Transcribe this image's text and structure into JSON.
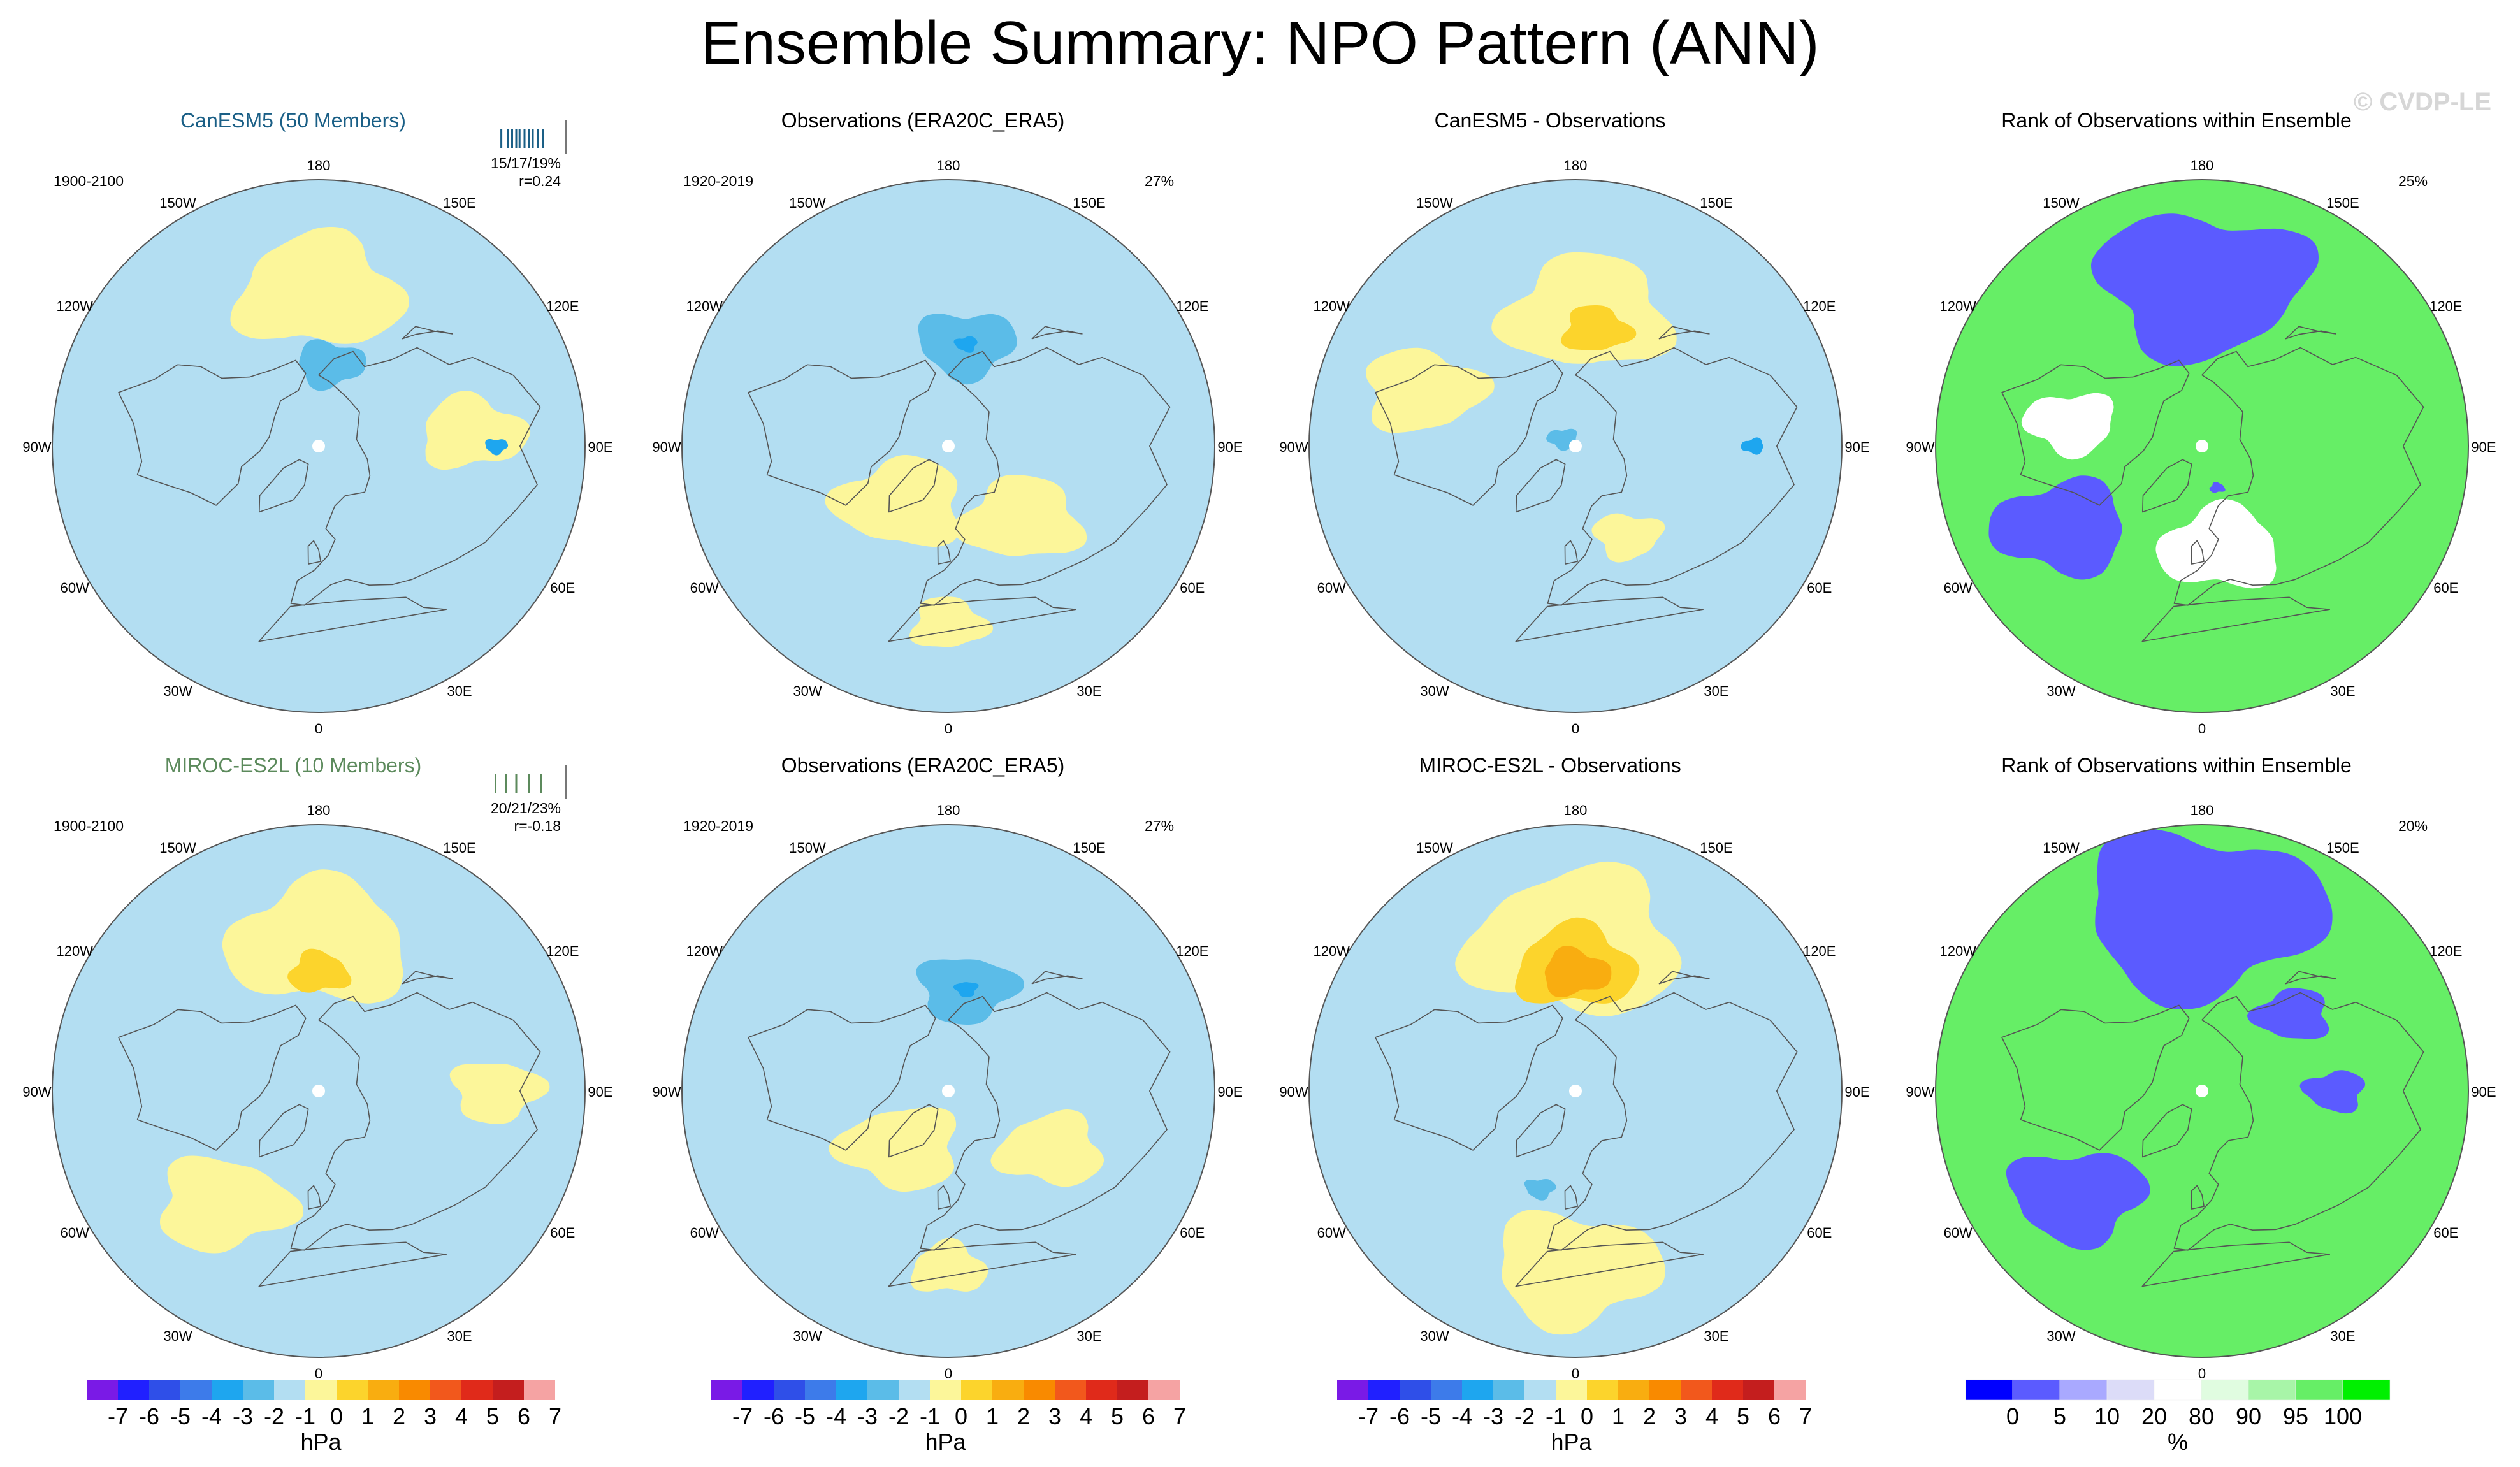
{
  "figure": {
    "title": "Ensemble Summary: NPO Pattern (ANN)",
    "watermark": "© CVDP-LE"
  },
  "colors": {
    "anomaly_levels": [
      "#7a1ae6",
      "#2020ff",
      "#2f4fe8",
      "#3d7bea",
      "#1ea6ef",
      "#5bbce8",
      "#b3def2",
      "#fcf69a",
      "#fcd42c",
      "#f9ad10",
      "#f98a00",
      "#f2581c",
      "#e02a1a",
      "#c41e1e",
      "#f5a3a3"
    ],
    "rank_levels": [
      "#0000ff",
      "#5b5bff",
      "#a9a9ff",
      "#dcdcf8",
      "#ffffff",
      "#e0fce0",
      "#a8f5a8",
      "#66ee66",
      "#00f000"
    ],
    "model_title_row1": "#1a5f86",
    "model_title_row2": "#5c8a5c",
    "land": "#dfe8ee"
  },
  "chart_data": [
    {
      "type": "heatmap",
      "panel": "model",
      "map_projection": "polar-stereographic-nh",
      "title": "CanESM5 (50 Members)",
      "period": "1900-2100",
      "stats": "15/17/19%",
      "pattern_corr": "r=0.24",
      "units": "hPa",
      "ensemble_ticks": [
        0.22,
        0.3,
        0.35,
        0.4,
        0.44,
        0.5,
        0.55,
        0.6,
        0.66,
        0.72
      ],
      "field": {
        "background_value": -0.5,
        "anomalies": [
          {
            "lon": 180,
            "lat": 38,
            "value": 0.5,
            "size_deg": 22
          },
          {
            "lon": 95,
            "lat": 38,
            "value": 0.5,
            "size_deg": 14
          },
          {
            "lon": 172,
            "lat": 62,
            "value": -1.5,
            "size_deg": 9
          },
          {
            "lon": 90,
            "lat": 30,
            "value": -2.5,
            "size_deg": 3
          }
        ]
      }
    },
    {
      "type": "heatmap",
      "panel": "observations",
      "map_projection": "polar-stereographic-nh",
      "title": "Observations (ERA20C_ERA5)",
      "period": "1920-2019",
      "variance": "27%",
      "units": "hPa",
      "field": {
        "background_value": -0.5,
        "anomalies": [
          {
            "lon": 170,
            "lat": 55,
            "value": -1.5,
            "size_deg": 13
          },
          {
            "lon": 170,
            "lat": 55,
            "value": -2.5,
            "size_deg": 3
          },
          {
            "lon": -40,
            "lat": 65,
            "value": 0.5,
            "size_deg": 17
          },
          {
            "lon": 45,
            "lat": 55,
            "value": 0.5,
            "size_deg": 16
          },
          {
            "lon": 0,
            "lat": 30,
            "value": 0.5,
            "size_deg": 10
          }
        ]
      }
    },
    {
      "type": "heatmap",
      "panel": "difference",
      "map_projection": "polar-stereographic-nh",
      "title": "CanESM5 - Observations",
      "units": "hPa",
      "field": {
        "background_value": -0.5,
        "anomalies": [
          {
            "lon": 175,
            "lat": 45,
            "value": 0.5,
            "size_deg": 22
          },
          {
            "lon": 170,
            "lat": 50,
            "value": 1.5,
            "size_deg": 9
          },
          {
            "lon": -110,
            "lat": 35,
            "value": 0.5,
            "size_deg": 16
          },
          {
            "lon": 30,
            "lat": 55,
            "value": 0.5,
            "size_deg": 9
          },
          {
            "lon": -120,
            "lat": 85,
            "value": -1.5,
            "size_deg": 4
          },
          {
            "lon": 90,
            "lat": 30,
            "value": -2.5,
            "size_deg": 3
          }
        ]
      }
    },
    {
      "type": "heatmap",
      "panel": "rank",
      "map_projection": "polar-stereographic-nh",
      "title": "Rank of Observations within Ensemble",
      "variance": "25%",
      "units": "%",
      "field": {
        "background_value": 99,
        "anomalies": [
          {
            "lon": 180,
            "lat": 35,
            "value": 1,
            "size_deg": 28
          },
          {
            "lon": -100,
            "lat": 45,
            "value": 50,
            "size_deg": 12
          },
          {
            "lon": -60,
            "lat": 35,
            "value": 1,
            "size_deg": 18
          },
          {
            "lon": 10,
            "lat": 55,
            "value": 50,
            "size_deg": 16
          },
          {
            "lon": 20,
            "lat": 75,
            "value": 1,
            "size_deg": 2
          }
        ]
      }
    },
    {
      "type": "heatmap",
      "panel": "model",
      "map_projection": "polar-stereographic-nh",
      "title": "MIROC-ES2L (10 Members)",
      "period": "1900-2100",
      "stats": "20/21/23%",
      "pattern_corr": "r=-0.18",
      "units": "hPa",
      "ensemble_ticks": [
        0.15,
        0.28,
        0.4,
        0.55,
        0.7
      ],
      "field": {
        "background_value": -0.5,
        "anomalies": [
          {
            "lon": 180,
            "lat": 40,
            "value": 0.5,
            "size_deg": 24
          },
          {
            "lon": 180,
            "lat": 50,
            "value": 1.5,
            "size_deg": 8
          },
          {
            "lon": -40,
            "lat": 40,
            "value": 0.5,
            "size_deg": 18
          },
          {
            "lon": 90,
            "lat": 30,
            "value": 0.5,
            "size_deg": 12
          }
        ]
      }
    },
    {
      "type": "heatmap",
      "panel": "observations",
      "map_projection": "polar-stereographic-nh",
      "title": "Observations (ERA20C_ERA5)",
      "period": "1920-2019",
      "variance": "27%",
      "units": "hPa",
      "field": {
        "background_value": -0.5,
        "anomalies": [
          {
            "lon": 170,
            "lat": 55,
            "value": -1.5,
            "size_deg": 13
          },
          {
            "lon": 170,
            "lat": 55,
            "value": -2.5,
            "size_deg": 3
          },
          {
            "lon": -40,
            "lat": 65,
            "value": 0.5,
            "size_deg": 16
          },
          {
            "lon": 60,
            "lat": 50,
            "value": 0.5,
            "size_deg": 14
          },
          {
            "lon": 0,
            "lat": 30,
            "value": 0.5,
            "size_deg": 10
          }
        ]
      }
    },
    {
      "type": "heatmap",
      "panel": "difference",
      "map_projection": "polar-stereographic-nh",
      "title": "MIROC-ES2L - Observations",
      "units": "hPa",
      "field": {
        "background_value": -0.5,
        "anomalies": [
          {
            "lon": 180,
            "lat": 40,
            "value": 0.5,
            "size_deg": 28
          },
          {
            "lon": 180,
            "lat": 48,
            "value": 1.5,
            "size_deg": 16
          },
          {
            "lon": 180,
            "lat": 50,
            "value": 2.5,
            "size_deg": 9
          },
          {
            "lon": 0,
            "lat": 30,
            "value": 0.5,
            "size_deg": 22
          },
          {
            "lon": -20,
            "lat": 55,
            "value": -1.5,
            "size_deg": 4
          }
        ]
      }
    },
    {
      "type": "heatmap",
      "panel": "rank",
      "map_projection": "polar-stereographic-nh",
      "title": "Rank of Observations within Ensemble",
      "variance": "20%",
      "units": "%",
      "field": {
        "background_value": 99,
        "anomalies": [
          {
            "lon": 180,
            "lat": 30,
            "value": 1,
            "size_deg": 32
          },
          {
            "lon": -50,
            "lat": 35,
            "value": 1,
            "size_deg": 18
          },
          {
            "lon": 90,
            "lat": 45,
            "value": 1,
            "size_deg": 8
          },
          {
            "lon": 130,
            "lat": 50,
            "value": 1,
            "size_deg": 10
          }
        ]
      }
    }
  ],
  "map_labels": {
    "lon_labels": [
      "180",
      "150E",
      "120E",
      "90E",
      "60E",
      "30E",
      "0",
      "30W",
      "60W",
      "90W",
      "120W",
      "150W"
    ]
  },
  "colorbars": {
    "anomaly": {
      "tick_labels": [
        "-7",
        "-6",
        "-5",
        "-4",
        "-3",
        "-2",
        "-1",
        "0",
        "1",
        "2",
        "3",
        "4",
        "5",
        "6",
        "7"
      ],
      "units": "hPa"
    },
    "rank": {
      "tick_labels": [
        "0",
        "5",
        "10",
        "20",
        "80",
        "90",
        "95",
        "100"
      ],
      "units": "%"
    }
  }
}
